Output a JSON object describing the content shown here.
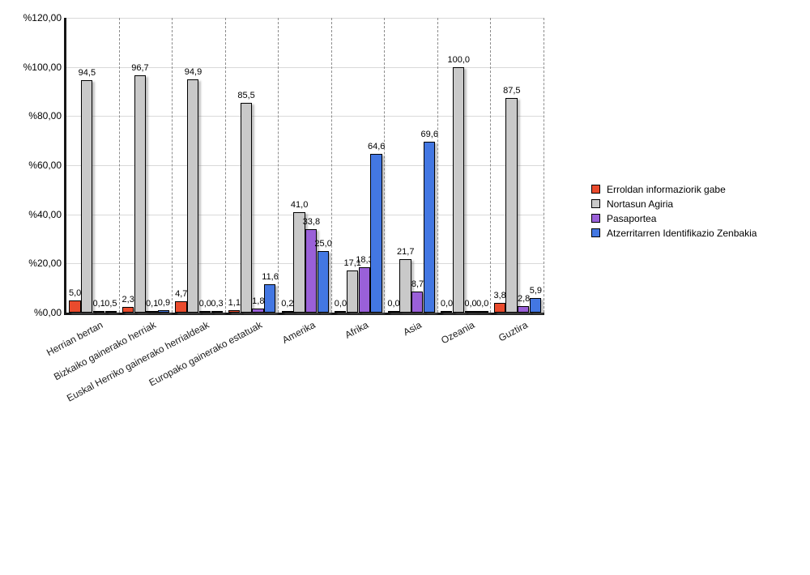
{
  "chart_data": {
    "type": "bar",
    "title": "",
    "categories": [
      "Herrian bertan",
      "Bizkaiko gainerako herriak",
      "Euskal Herriko gainerako herrialdeak",
      "Europako gainerako estatuak",
      "Amerika",
      "Afrika",
      "Asia",
      "Ozeania",
      "Guztira"
    ],
    "series": [
      {
        "name": "Erroldan informaziorik gabe",
        "color": "#ea4b2d",
        "values": [
          5.0,
          2.3,
          4.7,
          1.1,
          0.2,
          0.0,
          0.0,
          0.0,
          3.8
        ]
      },
      {
        "name": "Nortasun Agiria",
        "color": "#c9c9c9",
        "values": [
          94.5,
          96.7,
          94.9,
          85.5,
          41.0,
          17.1,
          21.7,
          100.0,
          87.5
        ]
      },
      {
        "name": "Pasaportea",
        "color": "#9a60d8",
        "values": [
          0.1,
          0.1,
          0.0,
          1.8,
          33.8,
          18.3,
          8.7,
          0.0,
          2.8
        ]
      },
      {
        "name": "Atzerritarren Identifikazio Zenbakia",
        "color": "#4377e2",
        "values": [
          0.5,
          0.9,
          0.3,
          11.6,
          25.0,
          64.6,
          69.6,
          0.0,
          5.9
        ]
      }
    ],
    "ylim": [
      0,
      120
    ],
    "yticks": [
      0,
      20,
      40,
      60,
      80,
      100,
      120
    ],
    "ytick_labels": [
      "%0,00",
      "%20,00",
      "%40,00",
      "%60,00",
      "%80,00",
      "%100,00",
      "%120,00"
    ],
    "value_label_decimal_separator": ",",
    "value_label_decimals": 1,
    "grid": true,
    "group_separators": "dashed",
    "legend_position": "right",
    "axis_color": "#161616",
    "gridline_color": "#d9d9d9"
  }
}
